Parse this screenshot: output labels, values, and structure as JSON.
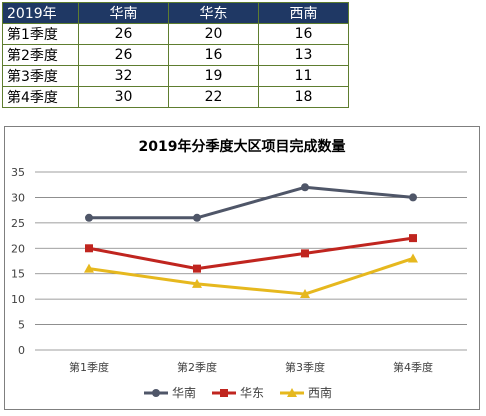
{
  "table": {
    "header": [
      "2019年",
      "华南",
      "华东",
      "西南"
    ],
    "rows": [
      [
        "第1季度",
        "26",
        "20",
        "16"
      ],
      [
        "第2季度",
        "26",
        "16",
        "13"
      ],
      [
        "第3季度",
        "32",
        "19",
        "11"
      ],
      [
        "第4季度",
        "30",
        "22",
        "18"
      ]
    ],
    "header_bg": "#1f3864",
    "border_color": "#5e7d2f"
  },
  "chart_data": {
    "type": "line",
    "title": "2019年分季度大区项目完成数量",
    "categories": [
      "第1季度",
      "第2季度",
      "第3季度",
      "第4季度"
    ],
    "series": [
      {
        "name": "华南",
        "values": [
          26,
          26,
          32,
          30
        ],
        "color": "#4f5668",
        "marker": "circle"
      },
      {
        "name": "华东",
        "values": [
          20,
          16,
          19,
          22
        ],
        "color": "#c0251f",
        "marker": "square"
      },
      {
        "name": "西南",
        "values": [
          16,
          13,
          11,
          18
        ],
        "color": "#e6b81e",
        "marker": "triangle"
      }
    ],
    "ylim": [
      0,
      35
    ],
    "yticks": [
      0,
      5,
      10,
      15,
      20,
      25,
      30,
      35
    ],
    "grid": true,
    "legend": "bottom"
  }
}
